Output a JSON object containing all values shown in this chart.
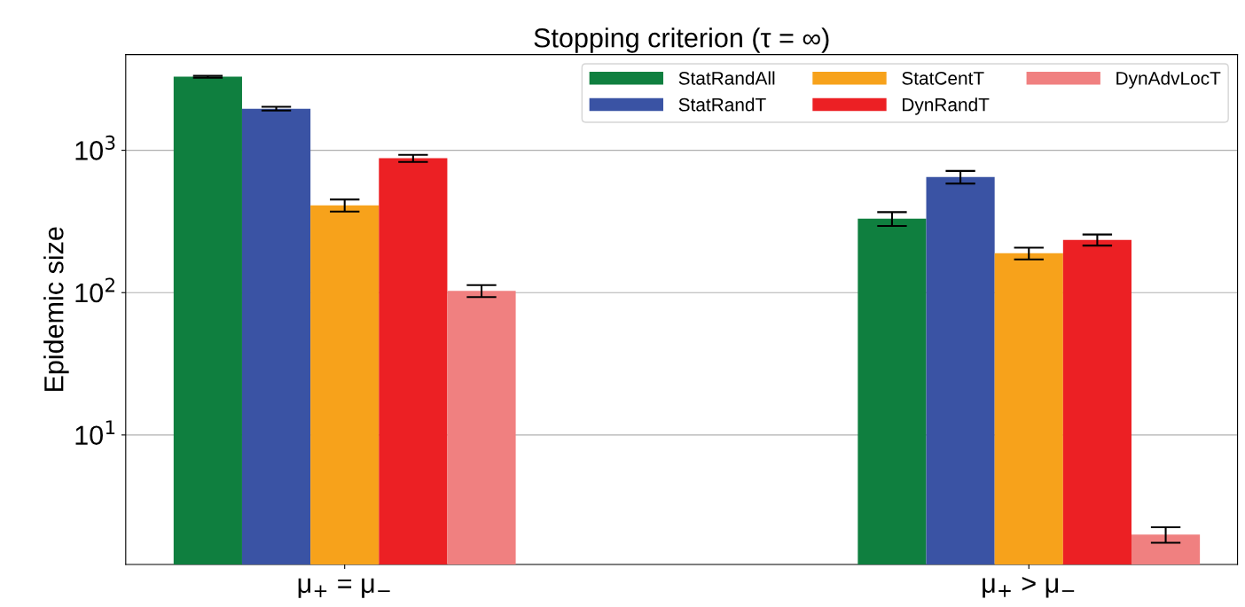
{
  "chart_data": {
    "type": "bar",
    "title": "Stopping criterion (τ = ∞)",
    "ylabel": "Epidemic size",
    "categories": [
      "μ$_{+}$ = μ$_{−}$",
      "μ$_{+}$ > μ$_{−}$"
    ],
    "series": [
      {
        "name": "StatRandAll",
        "color": "#0f7f3f",
        "values": [
          3290,
          331
        ],
        "errors": [
          50,
          37
        ]
      },
      {
        "name": "StatRandT",
        "color": "#3a53a4",
        "values": [
          1960,
          650
        ],
        "errors": [
          60,
          66
        ]
      },
      {
        "name": "StatCentT",
        "color": "#f7a21b",
        "values": [
          411,
          189
        ],
        "errors": [
          40,
          18
        ]
      },
      {
        "name": "DynRandT",
        "color": "#ec2024",
        "values": [
          879,
          235
        ],
        "errors": [
          50,
          21
        ]
      },
      {
        "name": "DynAdvLocT",
        "color": "#f08080",
        "values": [
          103,
          2.0
        ],
        "errors": [
          10,
          0.25
        ]
      }
    ],
    "log": "y",
    "ylim": [
      1.23,
      4700
    ],
    "yticks": [
      {
        "value": 10,
        "label": "10$^{1}$"
      },
      {
        "value": 100,
        "label": "10$^{2}$"
      },
      {
        "value": 1000,
        "label": "10$^{3}$"
      }
    ],
    "grid": "y",
    "legend": "top right"
  }
}
